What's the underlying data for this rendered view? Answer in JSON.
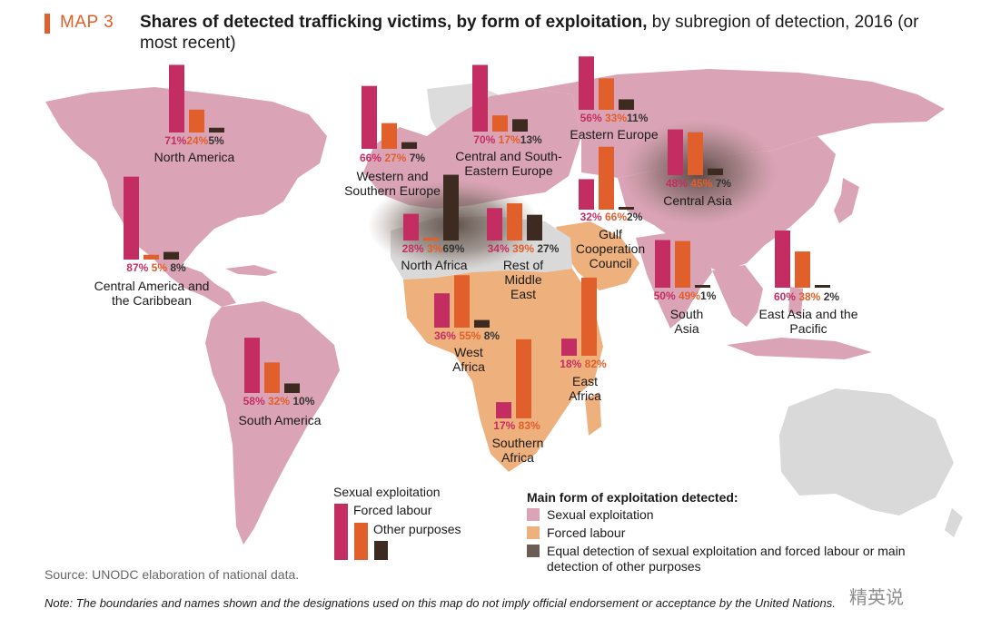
{
  "header": {
    "map_label": "MAP 3",
    "title_bold": "Shares of detected trafficking victims, by form of exploitation,",
    "title_rest": " by subregion of detection, 2016 (or most recent)"
  },
  "colors": {
    "sexual": "#c42d62",
    "forced": "#e05f2a",
    "other": "#3d2b22",
    "fill_sexual": "#dba3b6",
    "fill_forced": "#eeb07c",
    "fill_equal": "#6b5d55",
    "land_other": "#d9d9d9"
  },
  "regions": [
    {
      "name": "North America",
      "sexual": 71,
      "forced": 24,
      "other": 5,
      "sexual_label": "71%",
      "forced_label": "24%",
      "other_label": "5%"
    },
    {
      "name": "Western and Southern Europe",
      "sexual": 66,
      "forced": 27,
      "other": 7,
      "sexual_label": "66%",
      "forced_label": "27%",
      "other_label": "7%"
    },
    {
      "name": "Central and South-Eastern Europe",
      "sexual": 70,
      "forced": 17,
      "other": 13,
      "sexual_label": "70%",
      "forced_label": "17%",
      "other_label": "13%"
    },
    {
      "name": "Eastern Europe",
      "sexual": 56,
      "forced": 33,
      "other": 11,
      "sexual_label": "56%",
      "forced_label": "33%",
      "other_label": "11%"
    },
    {
      "name": "Central Asia",
      "sexual": 48,
      "forced": 45,
      "other": 7,
      "sexual_label": "48%",
      "forced_label": "45%",
      "other_label": "7%"
    },
    {
      "name": "Central America and the Caribbean",
      "sexual": 87,
      "forced": 5,
      "other": 8,
      "sexual_label": "87%",
      "forced_label": "5%",
      "other_label": "8%"
    },
    {
      "name": "North Africa",
      "sexual": 28,
      "forced": 3,
      "other": 69,
      "sexual_label": "28%",
      "forced_label": "3%",
      "other_label": "69%"
    },
    {
      "name": "Rest of Middle East",
      "sexual": 34,
      "forced": 39,
      "other": 27,
      "sexual_label": "34%",
      "forced_label": "39%",
      "other_label": "27%"
    },
    {
      "name": "Gulf Cooperation Council",
      "sexual": 32,
      "forced": 66,
      "other": 2,
      "sexual_label": "32%",
      "forced_label": "66%",
      "other_label": "2%"
    },
    {
      "name": "South Asia",
      "sexual": 50,
      "forced": 49,
      "other": 1,
      "sexual_label": "50%",
      "forced_label": "49%",
      "other_label": "1%"
    },
    {
      "name": "East Asia and the Pacific",
      "sexual": 60,
      "forced": 38,
      "other": 2,
      "sexual_label": "60%",
      "forced_label": "38%",
      "other_label": "2%"
    },
    {
      "name": "West Africa",
      "sexual": 36,
      "forced": 55,
      "other": 8,
      "sexual_label": "36%",
      "forced_label": "55%",
      "other_label": "8%"
    },
    {
      "name": "East Africa",
      "sexual": 18,
      "forced": 82,
      "other": null,
      "sexual_label": "18%",
      "forced_label": "82%",
      "other_label": ""
    },
    {
      "name": "South America",
      "sexual": 58,
      "forced": 32,
      "other": 10,
      "sexual_label": "58%",
      "forced_label": "32%",
      "other_label": "10%"
    },
    {
      "name": "Southern Africa",
      "sexual": 17,
      "forced": 83,
      "other": null,
      "sexual_label": "17%",
      "forced_label": "83%",
      "other_label": ""
    }
  ],
  "key_legend": {
    "sexual": "Sexual exploitation",
    "forced": "Forced labour",
    "other": "Other purposes"
  },
  "main_legend": {
    "title": "Main form of exploitation detected:",
    "items": [
      {
        "label": "Sexual exploitation",
        "color": "#dba3b6"
      },
      {
        "label": "Forced labour",
        "color": "#eeb07c"
      },
      {
        "label": "Equal detection of sexual exploitation and forced labour or main detection of other purposes",
        "color": "#6b5d55"
      }
    ]
  },
  "footer": {
    "source": "Source: UNODC elaboration of national data.",
    "note": "Note: The boundaries and names shown and the designations used on this map do not imply official endorsement or acceptance by the United Nations.",
    "watermark": "精英说"
  }
}
